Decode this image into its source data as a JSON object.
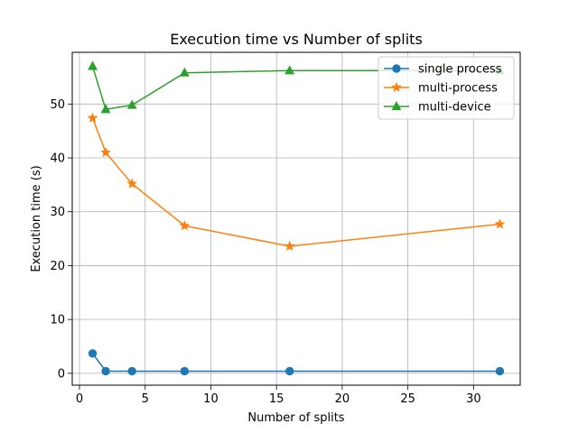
{
  "chart_data": {
    "type": "line",
    "title": "Execution time vs Number of splits",
    "xlabel": "Number of splits",
    "ylabel": "Execution time (s)",
    "x": [
      1,
      2,
      4,
      8,
      16,
      32
    ],
    "xlim": [
      -0.55,
      33.55
    ],
    "ylim": [
      -2.2,
      59.6
    ],
    "xticks": [
      0,
      5,
      10,
      15,
      20,
      25,
      30
    ],
    "yticks": [
      0,
      10,
      20,
      30,
      40,
      50
    ],
    "grid": true,
    "legend_position": "top-right",
    "series": [
      {
        "name": "single process",
        "color": "#1f77b4",
        "marker": "circle",
        "values": [
          3.7,
          0.4,
          0.4,
          0.4,
          0.4,
          0.4
        ]
      },
      {
        "name": "multi-process",
        "color": "#ff7f0e",
        "marker": "star",
        "values": [
          47.4,
          41.0,
          35.2,
          27.4,
          23.6,
          27.7
        ]
      },
      {
        "name": "multi-device",
        "color": "#2ca02c",
        "marker": "triangle",
        "values": [
          57.0,
          49.0,
          49.8,
          55.8,
          56.2,
          56.2
        ]
      }
    ]
  }
}
